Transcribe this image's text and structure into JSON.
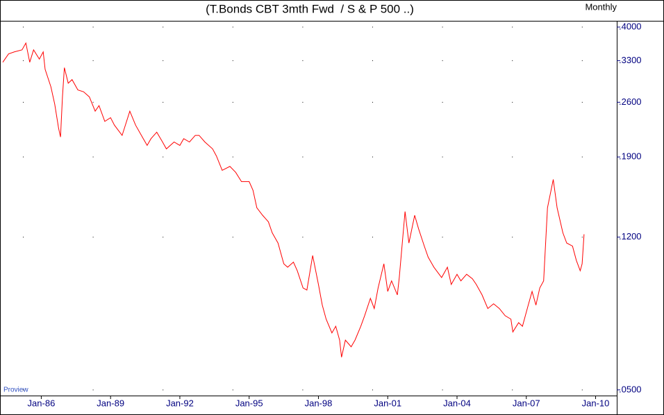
{
  "chart_data": {
    "type": "line",
    "title": "(T.Bonds CBT 3mth Fwd  / S & P 500 ..)",
    "frequency": "Monthly",
    "watermark": "Proview",
    "log_scale": true,
    "grid": true,
    "x": [
      "1984-05",
      "1984-08",
      "1984-11",
      "1985-03",
      "1985-05",
      "1985-07",
      "1985-09",
      "1985-12",
      "1986-02",
      "1986-03",
      "1986-06",
      "1986-08",
      "1986-10",
      "1986-11",
      "1986-12",
      "1987-01",
      "1987-03",
      "1987-05",
      "1987-08",
      "1987-11",
      "1988-02",
      "1988-05",
      "1988-07",
      "1988-10",
      "1989-01",
      "1989-03",
      "1989-07",
      "1989-11",
      "1990-02",
      "1990-06",
      "1990-08",
      "1990-10",
      "1991-01",
      "1991-04",
      "1991-06",
      "1991-10",
      "1992-01",
      "1992-03",
      "1992-06",
      "1992-09",
      "1992-11",
      "1993-02",
      "1993-06",
      "1993-08",
      "1993-11",
      "1994-03",
      "1994-06",
      "1994-09",
      "1995-01",
      "1995-03",
      "1995-05",
      "1995-08",
      "1995-11",
      "1996-01",
      "1996-04",
      "1996-07",
      "1996-09",
      "1996-12",
      "1997-02",
      "1997-05",
      "1997-07",
      "1997-10",
      "1998-01",
      "1998-03",
      "1998-05",
      "1998-08",
      "1998-10",
      "1998-12",
      "1999-01",
      "1999-03",
      "1999-06",
      "1999-08",
      "1999-11",
      "2000-01",
      "2000-04",
      "2000-06",
      "2000-08",
      "2000-11",
      "2001-01",
      "2001-03",
      "2001-06",
      "2001-07",
      "2001-10",
      "2001-12",
      "2002-03",
      "2002-05",
      "2002-08",
      "2002-10",
      "2003-01",
      "2003-05",
      "2003-08",
      "2003-10",
      "2004-01",
      "2004-03",
      "2004-06",
      "2004-09",
      "2004-11",
      "2005-02",
      "2005-05",
      "2005-08",
      "2005-11",
      "2006-02",
      "2006-05",
      "2006-06",
      "2006-09",
      "2006-11",
      "2007-02",
      "2007-04",
      "2007-06",
      "2007-08",
      "2007-10",
      "2007-12",
      "2008-03",
      "2008-05",
      "2008-08",
      "2008-10",
      "2009-01",
      "2009-03",
      "2009-05",
      "2009-06",
      "2009-07"
    ],
    "series": [
      {
        "name": "T.Bonds CBT 3mth Fwd / S & P 500",
        "color": "#ff0000",
        "values": [
          0.327,
          0.343,
          0.347,
          0.351,
          0.365,
          0.327,
          0.351,
          0.333,
          0.347,
          0.314,
          0.284,
          0.257,
          0.224,
          0.213,
          0.268,
          0.317,
          0.29,
          0.296,
          0.279,
          0.276,
          0.268,
          0.247,
          0.255,
          0.233,
          0.238,
          0.228,
          0.215,
          0.247,
          0.228,
          0.211,
          0.203,
          0.211,
          0.219,
          0.207,
          0.199,
          0.207,
          0.203,
          0.211,
          0.207,
          0.215,
          0.215,
          0.207,
          0.199,
          0.191,
          0.176,
          0.18,
          0.174,
          0.165,
          0.165,
          0.157,
          0.142,
          0.136,
          0.131,
          0.123,
          0.116,
          0.103,
          0.101,
          0.104,
          0.099,
          0.0897,
          0.0886,
          0.108,
          0.0915,
          0.0813,
          0.075,
          0.0693,
          0.072,
          0.0665,
          0.0603,
          0.0665,
          0.064,
          0.0665,
          0.072,
          0.0765,
          0.0845,
          0.0797,
          0.0897,
          0.103,
          0.0879,
          0.0934,
          0.0862,
          0.0952,
          0.139,
          0.116,
          0.136,
          0.126,
          0.114,
          0.107,
          0.101,
          0.0952,
          0.101,
          0.0915,
          0.097,
          0.0934,
          0.097,
          0.0945,
          0.0915,
          0.0862,
          0.0797,
          0.0819,
          0.0797,
          0.0765,
          0.075,
          0.0697,
          0.0735,
          0.072,
          0.0813,
          0.0879,
          0.0813,
          0.0897,
          0.0934,
          0.142,
          0.167,
          0.142,
          0.123,
          0.116,
          0.114,
          0.105,
          0.099,
          0.103,
          0.122
        ]
      }
    ],
    "xlim": [
      "1984-05",
      "2010-12"
    ],
    "xticks": [
      {
        "value": "1986-01",
        "label": "Jan-86"
      },
      {
        "value": "1989-01",
        "label": "Jan-89"
      },
      {
        "value": "1992-01",
        "label": "Jan-92"
      },
      {
        "value": "1995-01",
        "label": "Jan-95"
      },
      {
        "value": "1998-01",
        "label": "Jan-98"
      },
      {
        "value": "2001-01",
        "label": "Jan-01"
      },
      {
        "value": "2004-01",
        "label": "Jan-04"
      },
      {
        "value": "2007-01",
        "label": "Jan-07"
      },
      {
        "value": "2010-01",
        "label": "Jan-10"
      }
    ],
    "ylim": [
      0.0484,
      0.4146
    ],
    "yticks": [
      {
        "value": 0.05,
        "label": ".0500"
      },
      {
        "value": 0.12,
        "label": ".1200"
      },
      {
        "value": 0.19,
        "label": ".1900"
      },
      {
        "value": 0.26,
        "label": ".2600"
      },
      {
        "value": 0.33,
        "label": ".3300"
      },
      {
        "value": 0.4,
        "label": ".4000"
      }
    ]
  }
}
